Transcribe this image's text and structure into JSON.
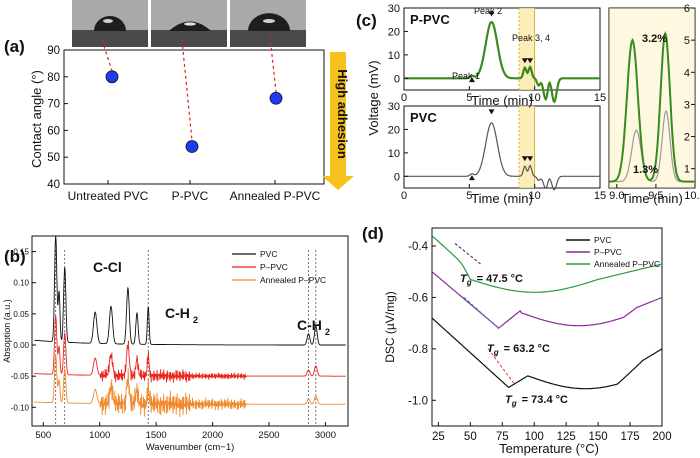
{
  "chart_data": [
    {
      "panel": "(a)",
      "type": "scatter",
      "categories": [
        "Untreated PVC",
        "P-PVC",
        "Annealed P-PVC"
      ],
      "values": [
        80,
        54,
        72
      ],
      "ylabel": "Contact angle (°)",
      "ylim": [
        40,
        90
      ],
      "yticks": [
        "40",
        "50",
        "60",
        "70",
        "80",
        "90"
      ],
      "arrow_label": "High adhesion",
      "colors": {
        "point": "#1b3cf0",
        "arrow": "#f5c21b",
        "guide": "#e02020"
      }
    },
    {
      "panel": "(b)",
      "type": "line",
      "xlabel": "Wavenumber (cm−1)",
      "ylabel": "Absoption (a.u.)",
      "xlim": [
        400,
        3200
      ],
      "ylim": [
        -0.13,
        0.175
      ],
      "xticks": [
        "500",
        "1000",
        "1500",
        "2000",
        "2500",
        "3000"
      ],
      "yticks": [
        "-0.10",
        "-0.05",
        "0.00",
        "0.05",
        "0.10",
        "0.15"
      ],
      "annotations": [
        "C-Cl",
        "C-H",
        "C-H"
      ],
      "annotation_sub": "2",
      "reference_lines": [
        610,
        690,
        1430,
        2850,
        2915
      ],
      "series": [
        {
          "name": "PVC",
          "color": "#111111",
          "offset": 0.0
        },
        {
          "name": "P–PVC",
          "color": "#e8261c",
          "offset": -0.05
        },
        {
          "name": "Annealed P–PVC",
          "color": "#f08a2c",
          "offset": -0.095
        }
      ]
    },
    {
      "panel": "(c)",
      "type": "line",
      "ylabel": "Voltage (mV)",
      "xlabel": "Time (min)",
      "xlim": [
        0,
        15
      ],
      "xticks": [
        "0",
        "5",
        "10",
        "15"
      ],
      "highlight_range": [
        8.8,
        10.0
      ],
      "subplots": [
        {
          "label": "P-PVC",
          "color": "#3a8a1e",
          "ylim": [
            -5,
            30
          ],
          "yticks": [
            "30",
            "20",
            "10",
            "0"
          ],
          "peaks": [
            "Peak 1",
            "Peak 2",
            "Peak 3, 4"
          ]
        },
        {
          "label": "PVC",
          "color": "#555555",
          "ylim": [
            -5,
            30
          ],
          "yticks": [
            "30",
            "20",
            "10",
            "0"
          ]
        }
      ],
      "inset": {
        "xlim": [
          8.9,
          10.0
        ],
        "xticks": [
          "9.0",
          "9.5",
          "10.0"
        ],
        "ylim": [
          0.4,
          6
        ],
        "yticks": [
          "1",
          "2",
          "3",
          "4",
          "5",
          "6"
        ],
        "green_label": "3.2%",
        "gray_label": "1.3%"
      }
    },
    {
      "panel": "(d)",
      "type": "line",
      "xlabel": "Temperature (°C)",
      "ylabel": "DSC (µV/mg)",
      "xlim": [
        20,
        200
      ],
      "ylim": [
        -1.1,
        -0.33
      ],
      "xticks": [
        "25",
        "50",
        "75",
        "100",
        "125",
        "150",
        "175",
        "200"
      ],
      "yticks": [
        "-0.4",
        "-0.6",
        "-0.8",
        "-1.0"
      ],
      "tg_prefix": "T",
      "tg_sub": "g",
      "series": [
        {
          "name": "PVC",
          "color": "#111111",
          "tg": "= 73.4 °C"
        },
        {
          "name": "P–PVC",
          "color": "#8a2a9a",
          "tg": "= 63.2 °C"
        },
        {
          "name": "Annealed P–PVC",
          "color": "#2e9a3a",
          "tg": "= 47.5 °C"
        }
      ]
    }
  ]
}
